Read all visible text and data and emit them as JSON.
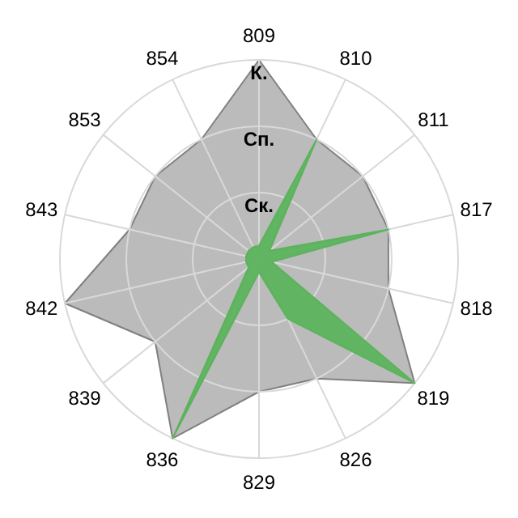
{
  "chart_data": {
    "type": "radar",
    "categories": [
      "809",
      "810",
      "811",
      "817",
      "818",
      "819",
      "826",
      "829",
      "836",
      "839",
      "842",
      "843",
      "853",
      "854"
    ],
    "series": [
      {
        "color": "#b4b4b4",
        "values": [
          3,
          2,
          2,
          2,
          2,
          3,
          2,
          2,
          3,
          2,
          3,
          2,
          2,
          2
        ]
      },
      {
        "color": "#5cb35c",
        "values": [
          0.2,
          2,
          0.2,
          2,
          0.2,
          3,
          1,
          0.2,
          3,
          0.2,
          0.2,
          0.2,
          0.2,
          0.2
        ]
      }
    ],
    "ylim": [
      0,
      3
    ],
    "yticks": [
      {
        "value": 1,
        "label": "Ск."
      },
      {
        "value": 2,
        "label": "Сп."
      },
      {
        "value": 3,
        "label": "К."
      }
    ],
    "grid": true,
    "marker": "none"
  }
}
